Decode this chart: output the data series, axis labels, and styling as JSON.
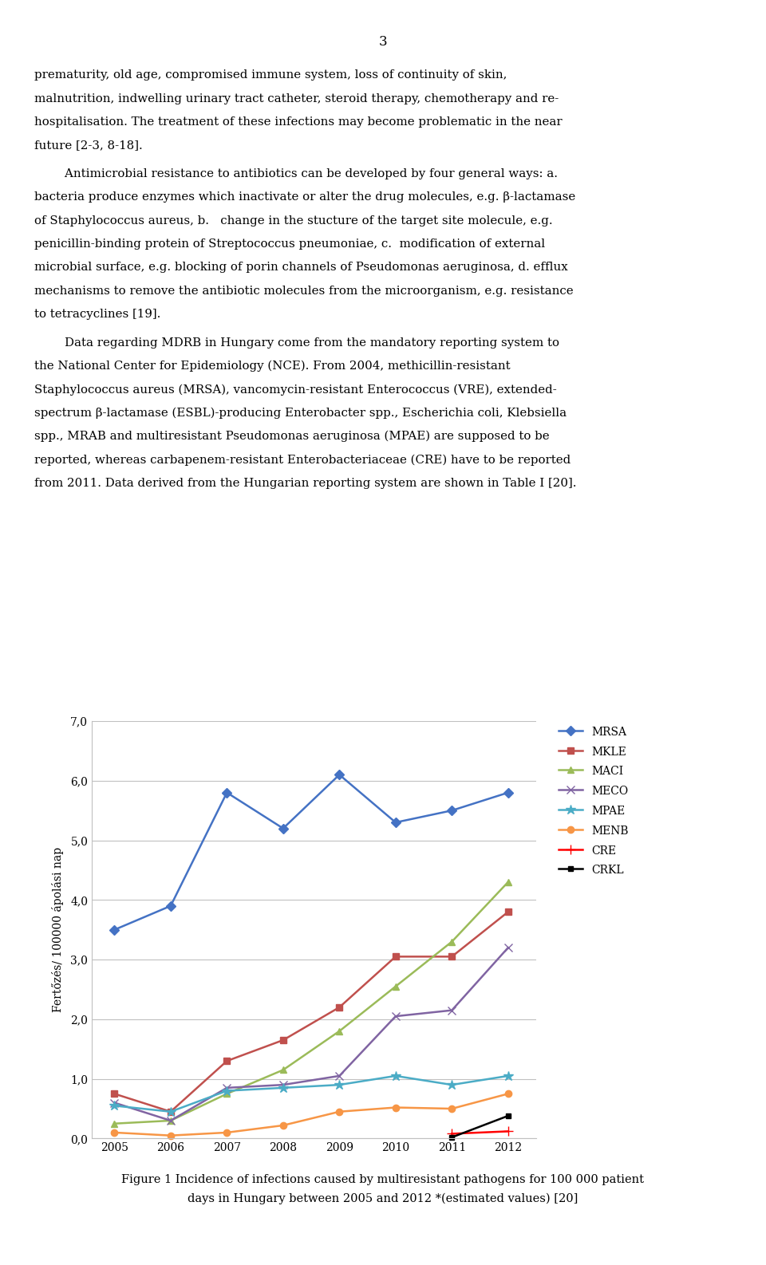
{
  "page_number": "3",
  "years": [
    2005,
    2006,
    2007,
    2008,
    2009,
    2010,
    2011,
    2012
  ],
  "series": {
    "MRSA": {
      "values": [
        3.5,
        3.9,
        5.8,
        5.2,
        6.1,
        5.3,
        5.5,
        5.8
      ],
      "color": "#4472C4",
      "marker": "D",
      "linestyle": "-",
      "markersize": 6
    },
    "MKLE": {
      "values": [
        0.75,
        0.45,
        1.3,
        1.65,
        2.2,
        3.05,
        3.05,
        3.8
      ],
      "color": "#C0504D",
      "marker": "s",
      "linestyle": "-",
      "markersize": 6
    },
    "MACI": {
      "values": [
        0.25,
        0.3,
        0.75,
        1.15,
        1.8,
        2.55,
        3.3,
        4.3
      ],
      "color": "#9BBB59",
      "marker": "^",
      "linestyle": "-",
      "markersize": 6
    },
    "MECO": {
      "values": [
        0.6,
        0.3,
        0.85,
        0.9,
        1.05,
        2.05,
        2.15,
        3.2
      ],
      "color": "#8064A2",
      "marker": "x",
      "linestyle": "-",
      "markersize": 7
    },
    "MPAE": {
      "values": [
        0.55,
        0.45,
        0.8,
        0.85,
        0.9,
        1.05,
        0.9,
        1.05
      ],
      "color": "#4BACC6",
      "marker": "*",
      "linestyle": "-",
      "markersize": 9
    },
    "MENB": {
      "values": [
        0.1,
        0.05,
        0.1,
        0.22,
        0.45,
        0.52,
        0.5,
        0.75
      ],
      "color": "#F79646",
      "marker": "o",
      "linestyle": "-",
      "markersize": 6
    },
    "CRE": {
      "values": [
        null,
        null,
        null,
        null,
        null,
        null,
        0.08,
        0.12
      ],
      "color": "#FF0000",
      "marker": "+",
      "linestyle": "-",
      "markersize": 9
    },
    "CRKL": {
      "values": [
        null,
        null,
        null,
        null,
        null,
        null,
        0.02,
        0.38
      ],
      "color": "#000000",
      "marker": "s",
      "linestyle": "-",
      "markersize": 5
    }
  },
  "ylabel": "Fertőzés/ 100000 ápolási nap",
  "ylim": [
    0.0,
    7.0
  ],
  "yticks": [
    0.0,
    1.0,
    2.0,
    3.0,
    4.0,
    5.0,
    6.0,
    7.0
  ],
  "ytick_labels": [
    "0,0",
    "1,0",
    "2,0",
    "3,0",
    "4,0",
    "5,0",
    "6,0",
    "7,0"
  ],
  "figure_caption_line1": "Figure 1 Incidence of infections caused by multiresistant pathogens for 100 000 patient",
  "figure_caption_line2": "days in Hungary between 2005 and 2012 *(estimated values) [20]",
  "background_color": "#FFFFFF",
  "grid_color": "#C0C0C0",
  "para1": "prematurity, old age, compromised immune system, loss of continuity of skin, malnutrition, indwelling urinary tract catheter, steroid therapy, chemotherapy and re-hospitalisation. The treatment of these infections may become problematic in the near future [2-3, 8-18].",
  "para2_line1": "Antimicrobial resistance to antibiotics can be developed by four general ways: a.",
  "para2_line2": "bacteria produce enzymes which inactivate or alter the drug molecules, e.g. β-lactamase",
  "para2_line3": "of Staphylococcus aureus, b.   change in the stucture of the target site molecule, e.g.",
  "para2_line4": "penicillin-binding protein of Streptococcus pneumoniae, c.  modification of external",
  "para2_line5": "microbial surface, e.g. blocking of porin channels of Pseudomonas aeruginosa, d. efflux",
  "para2_line6": "mechanisms to remove the antibiotic molecules from the microorganism, e.g. resistance",
  "para2_line7": "to tetracyclines [19].",
  "para3_line1": "        Data regarding MDRB in Hungary come from the mandatory reporting system to",
  "para3_line2": "the National Center for Epidemiology (NCE). From 2004, methicillin-resistant",
  "para3_line3": "Staphylococcus aureus (MRSA), vancomycin-resistant Enterococcus (VRE), extended-",
  "para3_line4": "spectrum β-lactamase (ESBL)-producing Enterobacter spp., Escherichia coli, Klebsiella",
  "para3_line5": "spp., MRAB and multiresistant Pseudomonas aeruginosa (MPAE) are supposed to be",
  "para3_line6": "reported, whereas carbapenem-resistant Enterobacteriaceae (CRE) have to be reported",
  "para3_line7": "from 2011. Data derived from the Hungarian reporting system are shown in Table I [20]."
}
